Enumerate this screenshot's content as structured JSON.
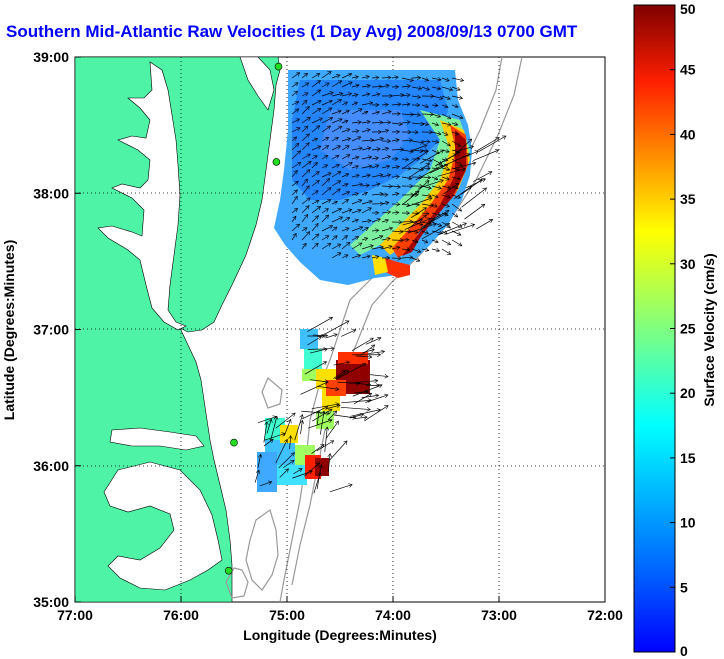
{
  "title": "Southern Mid-Atlantic Raw Velocities (1 Day Avg) 2008/09/13 0700 GMT",
  "map": {
    "xlabel": "Longitude (Degrees:Minutes)",
    "ylabel": "Latitude (Degrees:Minutes)",
    "x_ticks": [
      "77:00",
      "76:00",
      "75:00",
      "74:00",
      "73:00",
      "72:00"
    ],
    "y_ticks": [
      "39:00",
      "38:00",
      "37:00",
      "36:00",
      "35:00"
    ],
    "lon_range": [
      -77,
      -72
    ],
    "lat_range": [
      35,
      39
    ],
    "grid": "dotted"
  },
  "colorbar": {
    "label": "Surface Velocity (cm/s)",
    "ticks": [
      "50",
      "45",
      "40",
      "35",
      "30",
      "25",
      "20",
      "15",
      "10",
      "5",
      "0"
    ],
    "range": [
      0,
      50
    ],
    "colormap": "jet"
  },
  "colors": {
    "land": "#4ef3a6",
    "title": "#0000ff",
    "station": "#22dd22",
    "bathymetry": "#999999"
  },
  "stations": [
    {
      "lon": -75.08,
      "lat": 38.93
    },
    {
      "lon": -75.1,
      "lat": 38.23
    },
    {
      "lon": -75.5,
      "lat": 36.17
    },
    {
      "lon": -75.55,
      "lat": 35.23
    }
  ]
}
